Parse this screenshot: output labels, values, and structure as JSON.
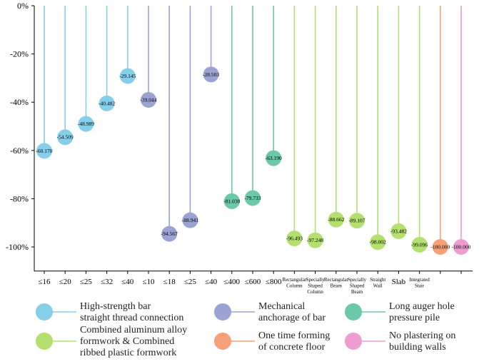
{
  "chart_data": {
    "type": "lollipop",
    "title": "",
    "xlabel": "",
    "ylabel": "",
    "ylim": [
      -110,
      0
    ],
    "yticks": [
      0,
      -20,
      -40,
      -60,
      -80,
      -100
    ],
    "ytick_labels": [
      "0%",
      "-20%",
      "-40%",
      "-60%",
      "-80%",
      "-100%"
    ],
    "grid": false,
    "legend_position": "bottom",
    "categories": [
      "≤16",
      "≤20",
      "≤25",
      "≤32",
      "≤40",
      "≤10",
      "≤18",
      "≤25",
      "≤40",
      "≤400",
      "≤600",
      "≤800",
      "Rectangular\nColumn",
      "Specially\nShaped\nColumn",
      "Rectangular\nBeam",
      "Specially\nShaped\nBeam",
      "Straight\nWall",
      "Slab",
      "Integrated\nStair",
      "",
      ""
    ],
    "values": [
      -60.17,
      -54.509,
      -48.989,
      -40.482,
      -29.145,
      -39.044,
      -94.567,
      -88.941,
      -28.503,
      -81.038,
      -79.733,
      -63.19,
      -96.493,
      -97.248,
      -88.662,
      -89.107,
      -98.002,
      -93.482,
      -99.096,
      -100.0,
      -100.0
    ],
    "value_labels": [
      "-60.170",
      "-54.509",
      "-48.989",
      "-40.482",
      "-29.145",
      "-39.044",
      "-94.567",
      "-88.941",
      "-28.503",
      "-81.038",
      "-79.733",
      "-63.190",
      "-96.493",
      "-97.248",
      "-88.662",
      "-89.107",
      "-98.002",
      "-93.482",
      "-99.096",
      "-100.000",
      "-100.000"
    ],
    "series_index": [
      0,
      0,
      0,
      0,
      0,
      1,
      1,
      1,
      1,
      2,
      2,
      2,
      3,
      3,
      3,
      3,
      3,
      3,
      3,
      4,
      5
    ],
    "series": [
      {
        "name": "High-strength bar\nstraight thread connection",
        "color": "#86CFEA"
      },
      {
        "name": "Mechanical\nanchorage of bar",
        "color": "#9AA3D2"
      },
      {
        "name": "Long auger hole\npressure pile",
        "color": "#6BC8A8"
      },
      {
        "name": "Combined aluminum alloy\nformwork & Combined\nribbed plastic formwork",
        "color": "#B3E06E"
      },
      {
        "name": "One time forming\nof concrete floor",
        "color": "#F7A07A"
      },
      {
        "name": "No plastering on\nbuilding walls",
        "color": "#EE9DCF"
      }
    ]
  }
}
